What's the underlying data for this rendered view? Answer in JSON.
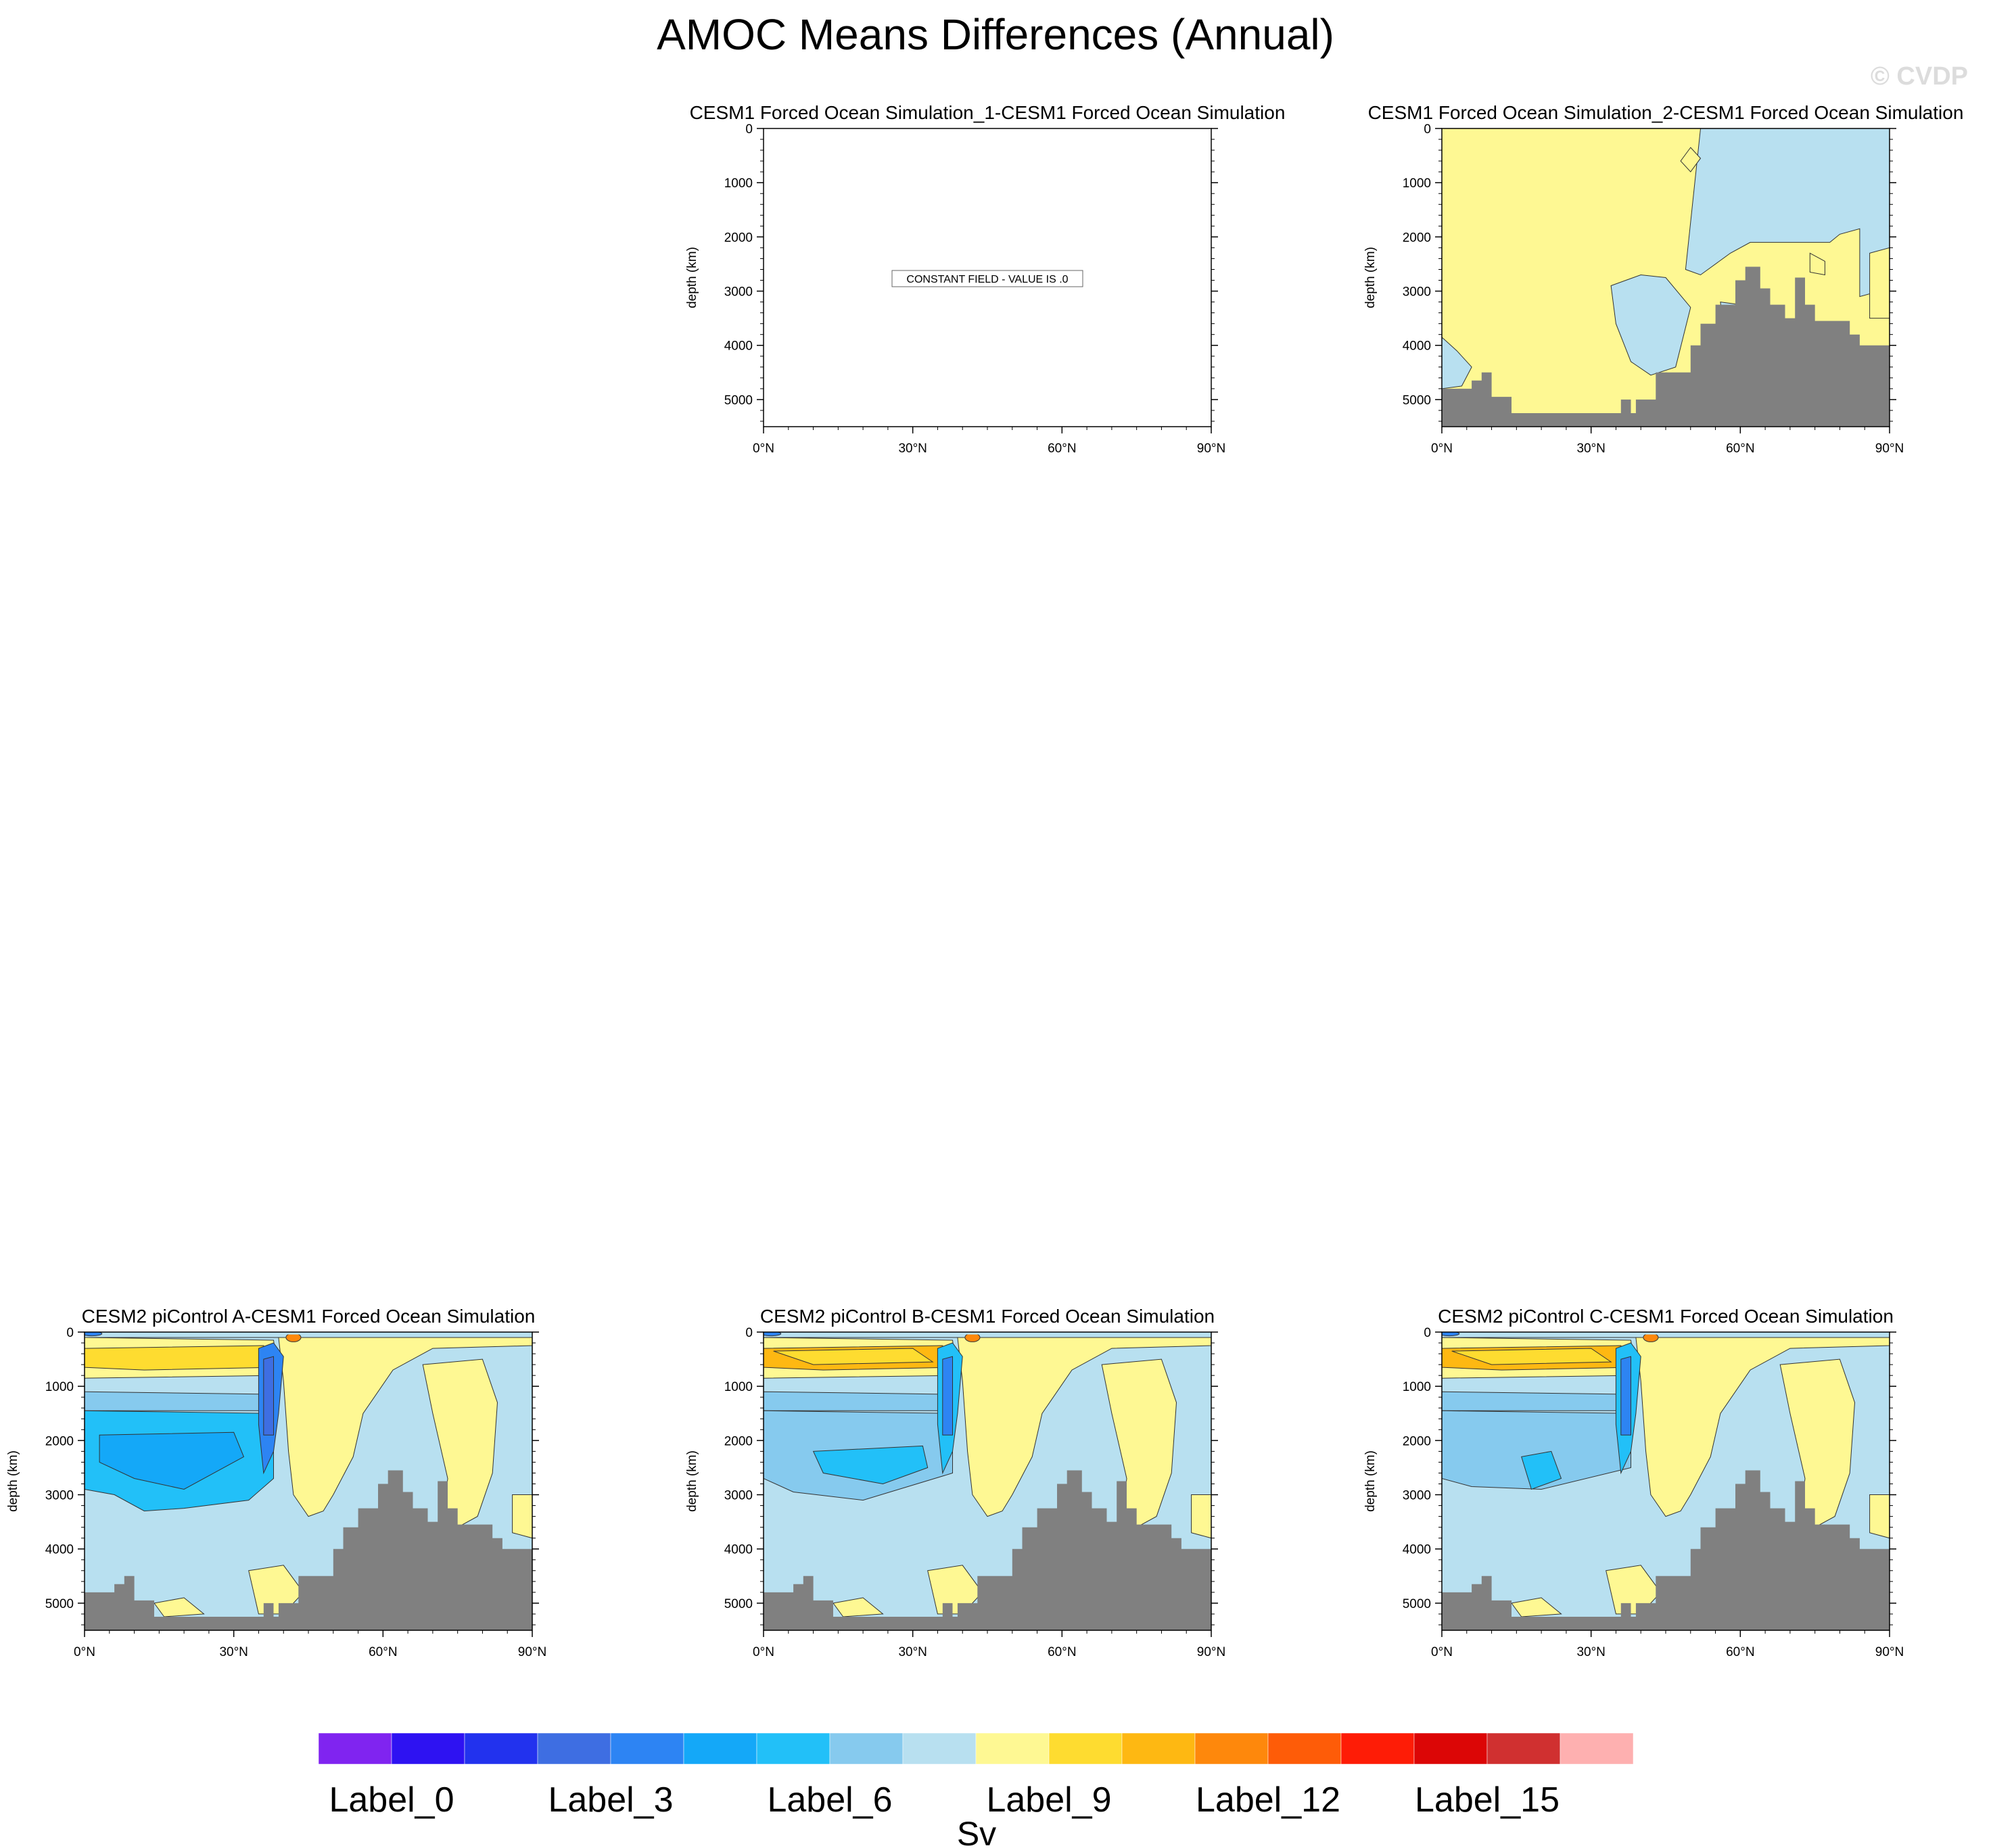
{
  "title": "AMOC Means Differences (Annual)",
  "watermark": "© CVDP",
  "chart_data": {
    "type": "contour-panels",
    "title": "AMOC Means Differences (Annual)",
    "xlabel": "",
    "ylabel": "depth (km)",
    "x_ticks": [
      "0°N",
      "30°N",
      "60°N",
      "90°N"
    ],
    "x_tick_values": [
      0,
      30,
      60,
      90
    ],
    "xlim": [
      0,
      90
    ],
    "y_ticks": [
      "0",
      "1000",
      "2000",
      "3000",
      "4000",
      "5000"
    ],
    "y_tick_values": [
      0,
      1000,
      2000,
      3000,
      4000,
      5000
    ],
    "ylim": [
      5500,
      0
    ],
    "panels": [
      {
        "name": "sim1",
        "title": "CESM1 Forced Ocean Simulation_1-CESM1 Forced Ocean Simulation",
        "constant_label": "CONSTANT FIELD - VALUE IS .0",
        "style": "constant"
      },
      {
        "name": "sim2",
        "title": "CESM1 Forced Ocean Simulation_2-CESM1 Forced Ocean Simulation",
        "style": "sim2"
      },
      {
        "name": "picA",
        "title": "CESM2 piControl A-CESM1 Forced Ocean Simulation",
        "style": "picA"
      },
      {
        "name": "picB",
        "title": "CESM2 piControl B-CESM1 Forced Ocean Simulation",
        "style": "picB"
      },
      {
        "name": "picC",
        "title": "CESM2 piControl C-CESM1 Forced Ocean Simulation",
        "style": "picC"
      }
    ],
    "bathymetry": [
      {
        "lat": 0,
        "depth": 4800
      },
      {
        "lat": 6,
        "depth": 4650
      },
      {
        "lat": 8,
        "depth": 4500
      },
      {
        "lat": 10,
        "depth": 4950
      },
      {
        "lat": 14,
        "depth": 5250
      },
      {
        "lat": 34,
        "depth": 5250
      },
      {
        "lat": 36,
        "depth": 5000
      },
      {
        "lat": 38,
        "depth": 5250
      },
      {
        "lat": 39,
        "depth": 5000
      },
      {
        "lat": 43,
        "depth": 4500
      },
      {
        "lat": 50,
        "depth": 4000
      },
      {
        "lat": 52,
        "depth": 3600
      },
      {
        "lat": 55,
        "depth": 3250
      },
      {
        "lat": 59,
        "depth": 2800
      },
      {
        "lat": 61,
        "depth": 2550
      },
      {
        "lat": 64,
        "depth": 2950
      },
      {
        "lat": 66,
        "depth": 3250
      },
      {
        "lat": 69,
        "depth": 3500
      },
      {
        "lat": 71,
        "depth": 2750
      },
      {
        "lat": 73,
        "depth": 3250
      },
      {
        "lat": 75,
        "depth": 3550
      },
      {
        "lat": 82,
        "depth": 3800
      },
      {
        "lat": 84,
        "depth": 4000
      },
      {
        "lat": 90,
        "depth": 4000
      }
    ],
    "colorbar": {
      "colors": [
        "#8024f0",
        "#2e12f2",
        "#2232ee",
        "#3e6ee2",
        "#2d84f3",
        "#14a8f8",
        "#22c0f8",
        "#86caee",
        "#b8e0f0",
        "#fef893",
        "#fedc30",
        "#feb812",
        "#fe880c",
        "#fe5c08",
        "#fe1c06",
        "#dc0606",
        "#d03030",
        "#feb0b0"
      ],
      "labels": [
        {
          "index": 0,
          "text": "Label_0"
        },
        {
          "index": 3,
          "text": "Label_3"
        },
        {
          "index": 6,
          "text": "Label_6"
        },
        {
          "index": 9,
          "text": "Label_9"
        },
        {
          "index": 12,
          "text": "Label_12"
        },
        {
          "index": 15,
          "text": "Label_15"
        }
      ],
      "units": "Sv"
    }
  }
}
